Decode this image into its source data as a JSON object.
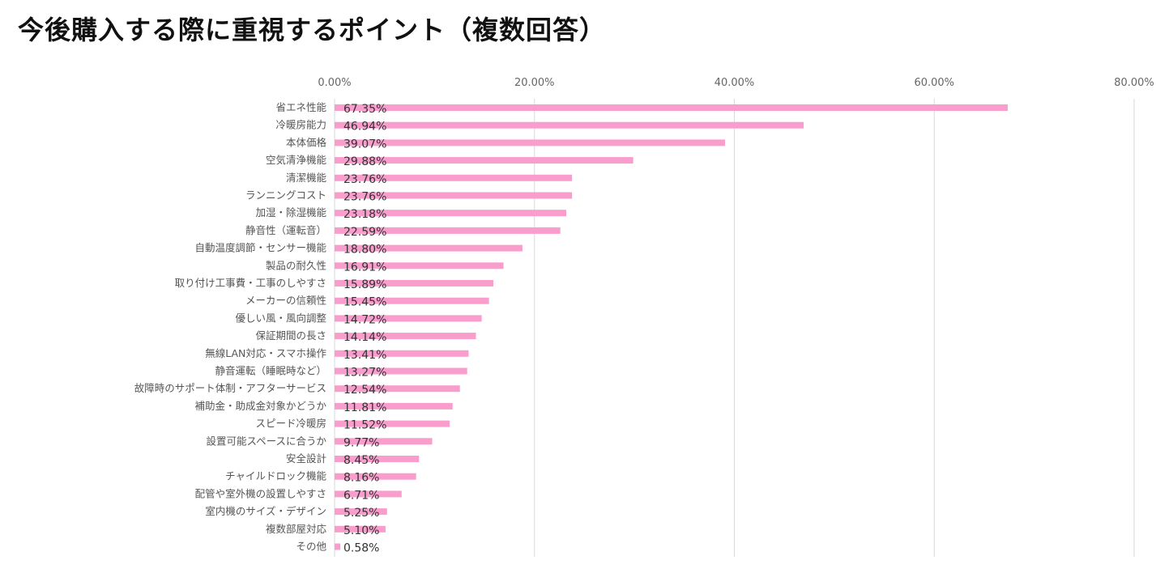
{
  "title": "今後購入する際に重視するポイント（複数回答）",
  "colors": {
    "bar": "#f99dcc",
    "grid": "#d9d9d9"
  },
  "chart_data": {
    "type": "bar",
    "orientation": "horizontal",
    "title": "今後購入する際に重視するポイント（複数回答）",
    "xlabel": "",
    "ylabel": "",
    "xlim": [
      0,
      80
    ],
    "ticks": [
      0,
      20,
      40,
      60,
      80
    ],
    "tick_labels": [
      "0.00%",
      "20.00%",
      "40.00%",
      "60.00%",
      "80.00%"
    ],
    "axis_position": "top",
    "grid": true,
    "legend": "none",
    "categories": [
      "省エネ性能",
      "冷暖房能力",
      "本体価格",
      "空気清浄機能",
      "清潔機能",
      "ランニングコスト",
      "加湿・除湿機能",
      "静音性（運転音）",
      "自動温度調節・センサー機能",
      "製品の耐久性",
      "取り付け工事費・工事のしやすさ",
      "メーカーの信頼性",
      "優しい風・風向調整",
      "保証期間の長さ",
      "無線LAN対応・スマホ操作",
      "静音運転（睡眠時など）",
      "故障時のサポート体制・アフターサービス",
      "補助金・助成金対象かどうか",
      "スピード冷暖房",
      "設置可能スペースに合うか",
      "安全設計",
      "チャイルドロック機能",
      "配管や室外機の設置しやすさ",
      "室内機のサイズ・デザイン",
      "複数部屋対応",
      "その他"
    ],
    "values": [
      67.35,
      46.94,
      39.07,
      29.88,
      23.76,
      23.76,
      23.18,
      22.59,
      18.8,
      16.91,
      15.89,
      15.45,
      14.72,
      14.14,
      13.41,
      13.27,
      12.54,
      11.81,
      11.52,
      9.77,
      8.45,
      8.16,
      6.71,
      5.25,
      5.1,
      0.58
    ],
    "value_labels": [
      "67.35%",
      "46.94%",
      "39.07%",
      "29.88%",
      "23.76%",
      "23.76%",
      "23.18%",
      "22.59%",
      "18.80%",
      "16.91%",
      "15.89%",
      "15.45%",
      "14.72%",
      "14.14%",
      "13.41%",
      "13.27%",
      "12.54%",
      "11.81%",
      "11.52%",
      "9.77%",
      "8.45%",
      "8.16%",
      "6.71%",
      "5.25%",
      "5.10%",
      "0.58%"
    ]
  }
}
